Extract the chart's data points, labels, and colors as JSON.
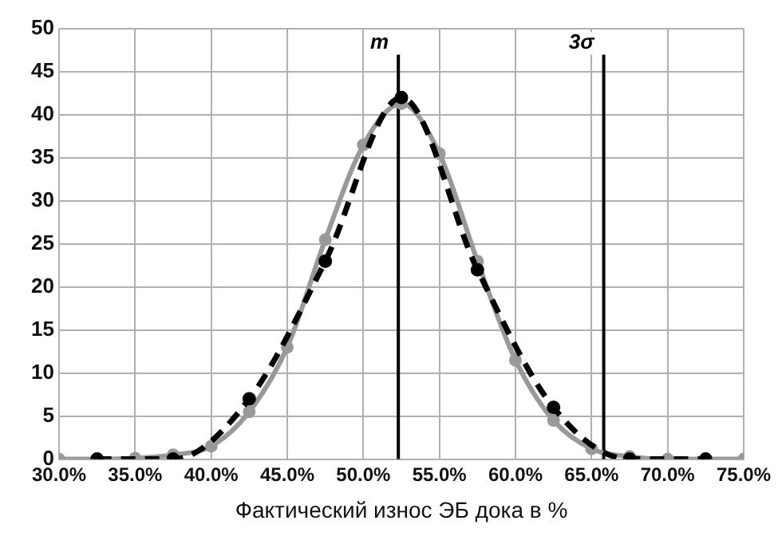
{
  "chart_data": {
    "type": "line",
    "xlabel": "Фактический износ ЭБ дока в %",
    "xlim": [
      30,
      75
    ],
    "xticks": [
      {
        "value": 30,
        "label": "30.0%"
      },
      {
        "value": 35,
        "label": "35.0%"
      },
      {
        "value": 40,
        "label": "40.0%"
      },
      {
        "value": 45,
        "label": "45.0%"
      },
      {
        "value": 50,
        "label": "50.0%"
      },
      {
        "value": 55,
        "label": "55.0%"
      },
      {
        "value": 60,
        "label": "60.0%"
      },
      {
        "value": 65,
        "label": "65.0%"
      },
      {
        "value": 70,
        "label": "70.0%"
      },
      {
        "value": 75,
        "label": "75.0%"
      }
    ],
    "ylim": [
      0,
      50
    ],
    "yticks": [
      0,
      5,
      10,
      15,
      20,
      25,
      30,
      35,
      40,
      45,
      50
    ],
    "series": [
      {
        "color": "#999999",
        "line_style": "solid",
        "x": [
          30,
          32.5,
          35,
          37.5,
          40,
          42.5,
          45,
          47.5,
          50,
          52.5,
          55,
          57.5,
          60,
          62.5,
          65,
          67.5,
          70,
          72.5,
          75
        ],
        "values": [
          0,
          0,
          0.1,
          0.5,
          1.5,
          5.5,
          13,
          25.5,
          36.5,
          41.3,
          35.5,
          23,
          11.5,
          4.5,
          1.2,
          0.3,
          0,
          0,
          0
        ]
      },
      {
        "color": "#000000",
        "line_style": "dashed",
        "x": [
          32.5,
          37.5,
          42.5,
          47.5,
          52.5,
          57.5,
          62.5,
          67.5,
          72.5
        ],
        "values": [
          0,
          0,
          7,
          23,
          42,
          22,
          6,
          0,
          0
        ]
      }
    ],
    "marker": "circle",
    "grid": true,
    "legend": false,
    "ref_lines": [
      {
        "axis": "x",
        "value": 52.3,
        "label": "m",
        "color": "#000000"
      },
      {
        "axis": "x",
        "value": 65.8,
        "label": "3σ",
        "color": "#000000"
      }
    ]
  }
}
